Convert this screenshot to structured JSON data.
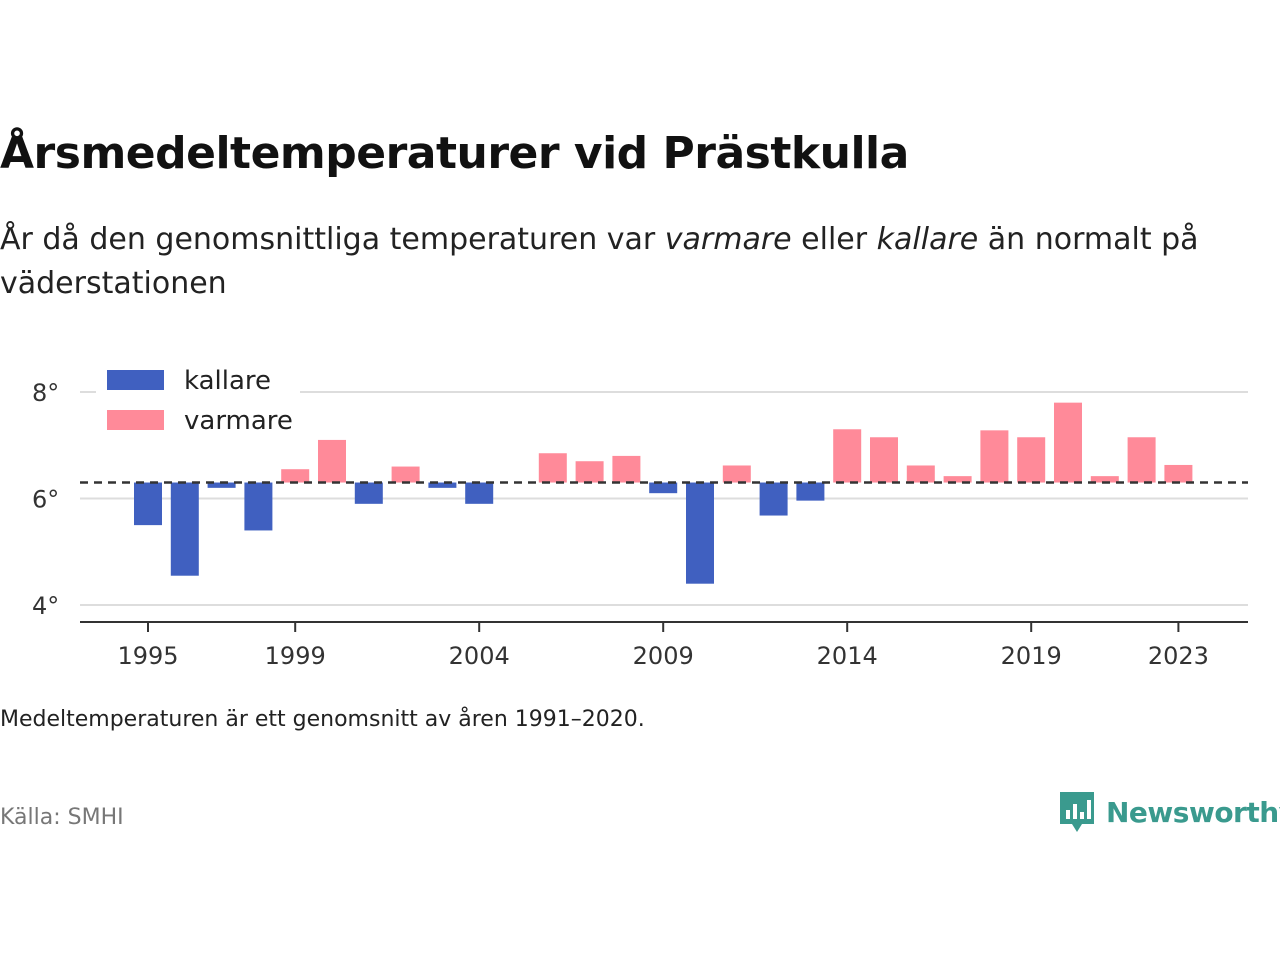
{
  "title": "Årsmedeltemperaturer vid Prästkulla",
  "subtitle": {
    "part1": "År då den genomsnittliga temperaturen var ",
    "warm_word": "varmare",
    "part2": " eller ",
    "cold_word": "kallare",
    "part3": " än normalt på väderstationen"
  },
  "note": "Medeltemperaturen är ett genomsnitt av åren 1991–2020.",
  "source": "Källa: SMHI",
  "brand": {
    "name": "Newsworthy",
    "icon": "newsworthy-logo-icon",
    "color": "#3a9a8e"
  },
  "colors": {
    "kallare": "#4060c0",
    "varmare": "#ff8a99",
    "baseline": "#333333",
    "grid": "#dddddd"
  },
  "chart_data": {
    "type": "bar",
    "baseline": 6.3,
    "ylim": [
      3.8,
      8.6
    ],
    "yticks": [
      4,
      6,
      8
    ],
    "ytick_labels": [
      "4°",
      "6°",
      "8°"
    ],
    "xticks": [
      1995,
      1999,
      2004,
      2009,
      2014,
      2019,
      2023
    ],
    "legend": [
      {
        "key": "kallare",
        "label": "kallare"
      },
      {
        "key": "varmare",
        "label": "varmare"
      }
    ],
    "legend_position": "top-left",
    "grid": true,
    "years": [
      1995,
      1996,
      1997,
      1998,
      1999,
      2000,
      2001,
      2002,
      2003,
      2004,
      2005,
      2006,
      2007,
      2008,
      2009,
      2010,
      2011,
      2012,
      2013,
      2014,
      2015,
      2016,
      2017,
      2018,
      2019,
      2020,
      2021,
      2022,
      2023
    ],
    "values": [
      5.5,
      4.55,
      6.2,
      5.4,
      6.55,
      7.1,
      5.9,
      6.6,
      6.2,
      5.9,
      6.3,
      6.85,
      6.7,
      6.8,
      6.1,
      4.4,
      6.62,
      5.68,
      5.96,
      7.3,
      7.15,
      6.62,
      6.42,
      7.28,
      7.15,
      7.8,
      6.42,
      7.15,
      6.63
    ]
  }
}
